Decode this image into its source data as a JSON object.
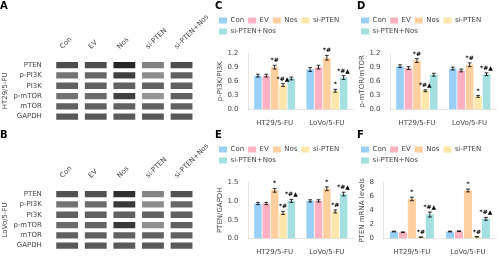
{
  "chart_data": [
    {
      "type": "heatmap",
      "title": "A",
      "ylabel": "HT29/5-FU",
      "categories": [
        "Con",
        "EV",
        "Nos",
        "si-PTEN",
        "si-PTEN+Nos"
      ],
      "rows": [
        "PTEN",
        "p-PI3K",
        "PI3K",
        "p-mTOR",
        "mTOR",
        "GAPDH"
      ],
      "cells": [
        [
          0.3,
          0.3,
          0.15,
          0.5,
          0.3
        ],
        [
          0.45,
          0.4,
          0.25,
          0.55,
          0.38
        ],
        [
          0.38,
          0.38,
          0.38,
          0.38,
          0.38
        ],
        [
          0.45,
          0.42,
          0.25,
          0.58,
          0.38
        ],
        [
          0.38,
          0.38,
          0.38,
          0.38,
          0.38
        ],
        [
          0.35,
          0.35,
          0.35,
          0.35,
          0.35
        ]
      ],
      "grid": false
    },
    {
      "type": "heatmap",
      "title": "B",
      "ylabel": "LoVo/5-FU",
      "categories": [
        "Con",
        "EV",
        "Nos",
        "si-PTEN",
        "si-PTEN+Nos"
      ],
      "rows": [
        "PTEN",
        "p-PI3K",
        "PI3K",
        "p-mTOR",
        "mTOR",
        "GAPDH"
      ],
      "cells": [
        [
          0.32,
          0.32,
          0.18,
          0.52,
          0.32
        ],
        [
          0.45,
          0.42,
          0.22,
          0.55,
          0.4
        ],
        [
          0.38,
          0.38,
          0.38,
          0.38,
          0.38
        ],
        [
          0.42,
          0.4,
          0.22,
          0.56,
          0.38
        ],
        [
          0.38,
          0.38,
          0.38,
          0.38,
          0.38
        ],
        [
          0.35,
          0.35,
          0.35,
          0.35,
          0.35
        ]
      ],
      "grid": false
    },
    {
      "type": "bar",
      "title": "C",
      "ylabel": "p-PI3K/PI3K",
      "categories": [
        "HT29/5-FU",
        "LoVo/5-FU"
      ],
      "series": [
        {
          "name": "Con",
          "values": [
            0.72,
            0.85
          ],
          "errors": [
            0.03,
            0.04
          ]
        },
        {
          "name": "EV",
          "values": [
            0.72,
            0.9
          ],
          "errors": [
            0.03,
            0.04
          ]
        },
        {
          "name": "Nos",
          "values": [
            0.9,
            1.1
          ],
          "errors": [
            0.04,
            0.05
          ],
          "annotations": [
            "*#",
            "*#"
          ]
        },
        {
          "name": "si-PTEN",
          "values": [
            0.52,
            0.4
          ],
          "errors": [
            0.03,
            0.03
          ],
          "annotations": [
            "*#▲",
            "*"
          ]
        },
        {
          "name": "si-PTEN+Nos",
          "values": [
            0.66,
            0.68
          ],
          "errors": [
            0.03,
            0.04
          ],
          "annotations": [
            null,
            "*#▲"
          ]
        }
      ],
      "ylim": [
        0,
        1.2
      ],
      "yticks": [
        {
          "value": 0,
          "label": "0.0"
        },
        0.3,
        0.6,
        0.9,
        1.2
      ],
      "grid": false,
      "legend": "upper left"
    },
    {
      "type": "bar",
      "title": "D",
      "ylabel": "p-mTOR/mTOR",
      "categories": [
        "HT29/5-FU",
        "LoVo/5-FU"
      ],
      "series": [
        {
          "name": "Con",
          "values": [
            0.92,
            0.87
          ],
          "errors": [
            0.03,
            0.03
          ]
        },
        {
          "name": "EV",
          "values": [
            0.88,
            0.83
          ],
          "errors": [
            0.03,
            0.03
          ]
        },
        {
          "name": "Nos",
          "values": [
            1.04,
            0.95
          ],
          "errors": [
            0.04,
            0.04
          ],
          "annotations": [
            "*#",
            "*#"
          ]
        },
        {
          "name": "si-PTEN",
          "values": [
            0.4,
            0.28
          ],
          "errors": [
            0.02,
            0.02
          ],
          "annotations": [
            "*#▲",
            "*"
          ]
        },
        {
          "name": "si-PTEN+Nos",
          "values": [
            0.74,
            0.75
          ],
          "errors": [
            0.03,
            0.03
          ],
          "annotations": [
            null,
            "*#▲"
          ]
        }
      ],
      "ylim": [
        0,
        1.2
      ],
      "yticks": [
        {
          "value": 0,
          "label": "0.0"
        },
        0.3,
        0.6,
        0.9,
        1.2
      ],
      "grid": false,
      "legend": "upper left"
    },
    {
      "type": "bar",
      "title": "E",
      "ylabel": "PTEN/GAPDH",
      "categories": [
        "HT29/5-FU",
        "LoVo/5-FU"
      ],
      "series": [
        {
          "name": "Con",
          "values": [
            0.93,
            1.0
          ],
          "errors": [
            0.03,
            0.03
          ]
        },
        {
          "name": "EV",
          "values": [
            0.93,
            1.0
          ],
          "errors": [
            0.03,
            0.03
          ]
        },
        {
          "name": "Nos",
          "values": [
            1.28,
            1.32
          ],
          "errors": [
            0.05,
            0.05
          ],
          "annotations": [
            "*",
            "*"
          ]
        },
        {
          "name": "si-PTEN",
          "values": [
            0.68,
            0.72
          ],
          "errors": [
            0.04,
            0.04
          ],
          "annotations": [
            "*#",
            "*#"
          ]
        },
        {
          "name": "si-PTEN+Nos",
          "values": [
            1.0,
            1.18
          ],
          "errors": [
            0.04,
            0.05
          ],
          "annotations": [
            "*#▲",
            "*#▲"
          ]
        }
      ],
      "ylim": [
        0,
        1.5
      ],
      "yticks": [
        {
          "value": 0,
          "label": "0.0"
        },
        0.5,
        {
          "value": 1,
          "label": "1.0"
        },
        1.5
      ],
      "grid": false,
      "legend": "upper left"
    },
    {
      "type": "bar",
      "title": "F",
      "ylabel": "PTEN mRNA levels",
      "categories": [
        "HT29/5-FU",
        "LoVo/5-FU"
      ],
      "series": [
        {
          "name": "Con",
          "values": [
            1.0,
            1.0
          ],
          "errors": [
            0.05,
            0.05
          ]
        },
        {
          "name": "EV",
          "values": [
            0.9,
            1.05
          ],
          "errors": [
            0.05,
            0.05
          ]
        },
        {
          "name": "Nos",
          "values": [
            5.6,
            6.8
          ],
          "errors": [
            0.25,
            0.2
          ],
          "annotations": [
            "*",
            "*"
          ]
        },
        {
          "name": "si-PTEN",
          "values": [
            0.2,
            0.25
          ],
          "errors": [
            0.03,
            0.03
          ],
          "annotations": [
            "*#",
            "*#"
          ]
        },
        {
          "name": "si-PTEN+Nos",
          "values": [
            3.4,
            2.8
          ],
          "errors": [
            0.35,
            0.2
          ],
          "annotations": [
            "*#▲",
            "*#▲"
          ]
        }
      ],
      "ylim": [
        0,
        8
      ],
      "yticks": [
        0,
        2,
        4,
        6,
        8
      ],
      "grid": false,
      "legend": "upper left"
    }
  ]
}
